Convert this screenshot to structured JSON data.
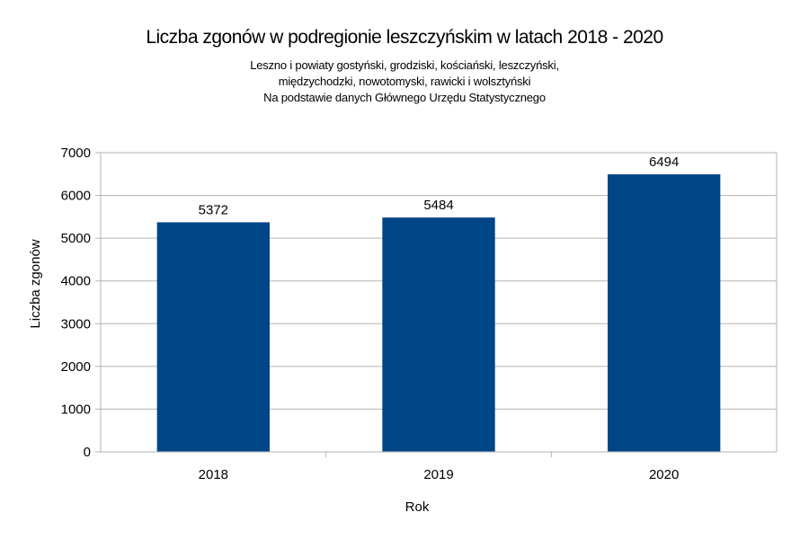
{
  "chart_data": {
    "type": "bar",
    "title": "Liczba zgonów w podregionie leszczyńskim w latach 2018 - 2020",
    "subtitle": [
      "Leszno i powiaty gostyński, grodziski, kościański, leszczyński,",
      "międzychodzki, nowotomyski, rawicki i wolsztyński",
      "Na podstawie danych Głównego Urzędu Statystycznego"
    ],
    "categories": [
      "2018",
      "2019",
      "2020"
    ],
    "values": [
      5372,
      5484,
      6494
    ],
    "data_labels": [
      "5372",
      "5484",
      "6494"
    ],
    "xlabel": "Rok",
    "ylabel": "Liczba zgonów",
    "ylim": [
      0,
      7000
    ],
    "yticks": [
      "0",
      "1000",
      "2000",
      "3000",
      "4000",
      "5000",
      "6000",
      "7000"
    ],
    "grid": true,
    "bar_color": "#004586",
    "grid_color": "#b3b3b3"
  }
}
